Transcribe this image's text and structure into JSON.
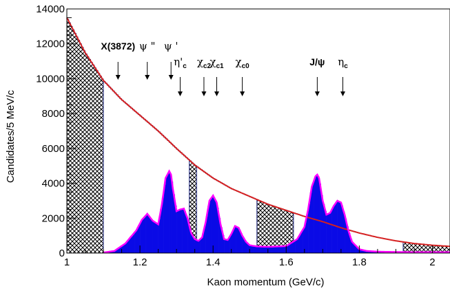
{
  "chart_data": {
    "type": "bar",
    "title": "",
    "xlabel": "Kaon momentum (GeV/c)",
    "ylabel": "Candidates/5 MeV/c",
    "xlim": [
      1.0,
      2.05
    ],
    "ylim": [
      0,
      14000
    ],
    "grid": false,
    "x_ticks": [
      {
        "value": 1.0,
        "label": "1"
      },
      {
        "value": 1.2,
        "label": "1.2"
      },
      {
        "value": 1.4,
        "label": "1.4"
      },
      {
        "value": 1.6,
        "label": "1.6"
      },
      {
        "value": 1.8,
        "label": "1.8"
      },
      {
        "value": 2.0,
        "label": "2"
      }
    ],
    "y_ticks": [
      {
        "value": 0,
        "label": "0"
      },
      {
        "value": 2000,
        "label": "2000"
      },
      {
        "value": 4000,
        "label": "4000"
      },
      {
        "value": 6000,
        "label": "6000"
      },
      {
        "value": 8000,
        "label": "8000"
      },
      {
        "value": 10000,
        "label": "10000"
      },
      {
        "value": 12000,
        "label": "12000"
      },
      {
        "value": 14000,
        "label": "14000"
      }
    ],
    "background_fit": {
      "color": "#d62020",
      "x": [
        1.0,
        1.05,
        1.1,
        1.15,
        1.2,
        1.25,
        1.3,
        1.35,
        1.4,
        1.45,
        1.5,
        1.55,
        1.6,
        1.65,
        1.7,
        1.75,
        1.8,
        1.85,
        1.9,
        1.95,
        2.0,
        2.05
      ],
      "y": [
        13500,
        11500,
        9900,
        8800,
        7900,
        7000,
        6000,
        5050,
        4300,
        3700,
        3250,
        2800,
        2450,
        2100,
        1800,
        1450,
        1150,
        900,
        700,
        550,
        450,
        380
      ]
    },
    "signal_fit": {
      "color": "#ff00ff",
      "x": [
        1.1,
        1.13,
        1.16,
        1.19,
        1.205,
        1.22,
        1.235,
        1.25,
        1.26,
        1.27,
        1.28,
        1.285,
        1.29,
        1.3,
        1.31,
        1.32,
        1.33,
        1.34,
        1.35,
        1.36,
        1.37,
        1.38,
        1.39,
        1.4,
        1.41,
        1.42,
        1.43,
        1.44,
        1.45,
        1.46,
        1.47,
        1.48,
        1.49,
        1.5,
        1.52,
        1.55,
        1.6,
        1.63,
        1.65,
        1.66,
        1.67,
        1.68,
        1.685,
        1.69,
        1.7,
        1.71,
        1.72,
        1.73,
        1.74,
        1.75,
        1.76,
        1.77,
        1.78,
        1.8,
        1.82,
        1.85,
        1.9,
        1.95,
        2.0,
        2.05
      ],
      "y": [
        30,
        120,
        550,
        1300,
        1900,
        2250,
        1850,
        1650,
        2800,
        4300,
        4700,
        4500,
        3700,
        2400,
        2500,
        2550,
        2000,
        1150,
        800,
        700,
        900,
        1800,
        3000,
        3300,
        2900,
        1700,
        800,
        750,
        1100,
        1550,
        1450,
        1000,
        650,
        450,
        380,
        360,
        400,
        800,
        1500,
        2500,
        3800,
        4400,
        4500,
        4300,
        3000,
        2200,
        2300,
        2700,
        3000,
        2900,
        2200,
        1300,
        650,
        220,
        120,
        80,
        60,
        50,
        50,
        50
      ]
    },
    "sidebands": [
      {
        "x0": 1.0,
        "x1": 1.1
      },
      {
        "x0": 1.335,
        "x1": 1.355
      },
      {
        "x0": 1.52,
        "x1": 1.62
      },
      {
        "x0": 1.92,
        "x1": 2.05
      }
    ],
    "annotations": [
      {
        "label": "X(3872)",
        "sub": "",
        "style": "bold",
        "x": 1.14,
        "row": "upper"
      },
      {
        "label": "ψ \"",
        "sub": "",
        "style": "serif",
        "x": 1.22,
        "row": "upper"
      },
      {
        "label": "ψ '",
        "sub": "",
        "style": "serif",
        "x": 1.285,
        "row": "upper"
      },
      {
        "label": "η'",
        "sub": "c",
        "style": "serif",
        "x": 1.31,
        "row": "lower"
      },
      {
        "label": "χ",
        "sub": "c2",
        "style": "serif",
        "x": 1.375,
        "row": "lower"
      },
      {
        "label": "χ",
        "sub": "c1",
        "style": "serif",
        "x": 1.41,
        "row": "lower"
      },
      {
        "label": "χ",
        "sub": "c0",
        "style": "serif",
        "x": 1.48,
        "row": "lower"
      },
      {
        "label": "J/ψ",
        "sub": "",
        "style": "bold",
        "x": 1.685,
        "row": "lower"
      },
      {
        "label": "η",
        "sub": "c",
        "style": "serif",
        "x": 1.755,
        "row": "lower"
      }
    ]
  }
}
